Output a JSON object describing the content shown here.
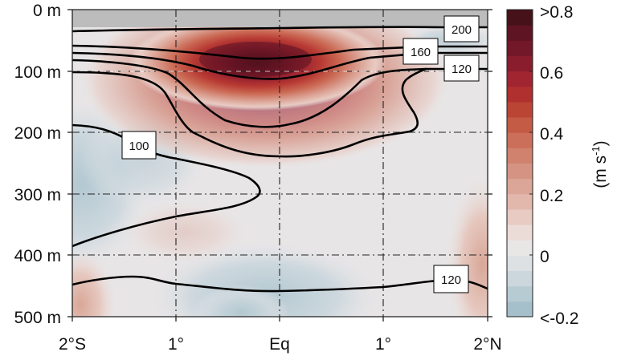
{
  "chart_data": {
    "type": "heatmap",
    "subtype": "filled-contour-section",
    "title": "",
    "xlabel": "",
    "ylabel": "",
    "x_ticks": [
      "2°S",
      "1°",
      "Eq",
      "1°",
      "2°N"
    ],
    "x_values": [
      -2,
      -1,
      0,
      1,
      2
    ],
    "y_ticks": [
      "0 m",
      "100 m",
      "200 m",
      "300 m",
      "400 m",
      "500 m"
    ],
    "y_values": [
      0,
      100,
      200,
      300,
      400,
      500
    ],
    "xlim": [
      -2,
      2
    ],
    "ylim": [
      500,
      0
    ],
    "grid": true,
    "colorbar": {
      "label": "(m s-1)",
      "label_main": "(m s",
      "label_sup": "-1",
      "label_close": ")",
      "ticks": [
        ">0.8",
        "0.6",
        "0.4",
        "0.2",
        "0",
        "<-0.2"
      ],
      "tick_values": [
        0.8,
        0.6,
        0.4,
        0.2,
        0,
        -0.2
      ],
      "range": [
        -0.2,
        0.8
      ],
      "levels": 20,
      "colors": [
        "#a5bfcb",
        "#b7cbd3",
        "#cbd7dd",
        "#dde1e4",
        "#e9e6e6",
        "#ecdcd8",
        "#e8cbc3",
        "#e2b8ad",
        "#dba698",
        "#d59483",
        "#d0826f",
        "#cb6f5b",
        "#c45b45",
        "#bb4535",
        "#b02f2f",
        "#a02531",
        "#8a1d2d",
        "#731828",
        "#5e1422",
        "#471119"
      ]
    },
    "contour_labels": [
      {
        "value": "200",
        "x": 1.8,
        "depth": 30
      },
      {
        "value": "160",
        "x": 1.4,
        "depth": 63
      },
      {
        "value": "120",
        "x": 1.8,
        "depth": 80
      },
      {
        "value": "100",
        "x": -1.35,
        "depth": 205
      },
      {
        "value": "120",
        "x": 1.65,
        "depth": 447
      }
    ],
    "annotations": [
      "Core jet maximum >0.8 m s-1 near 75 m depth, ~0.5°S to Eq",
      "Grey mask above ~30 m (surface layer)"
    ]
  }
}
